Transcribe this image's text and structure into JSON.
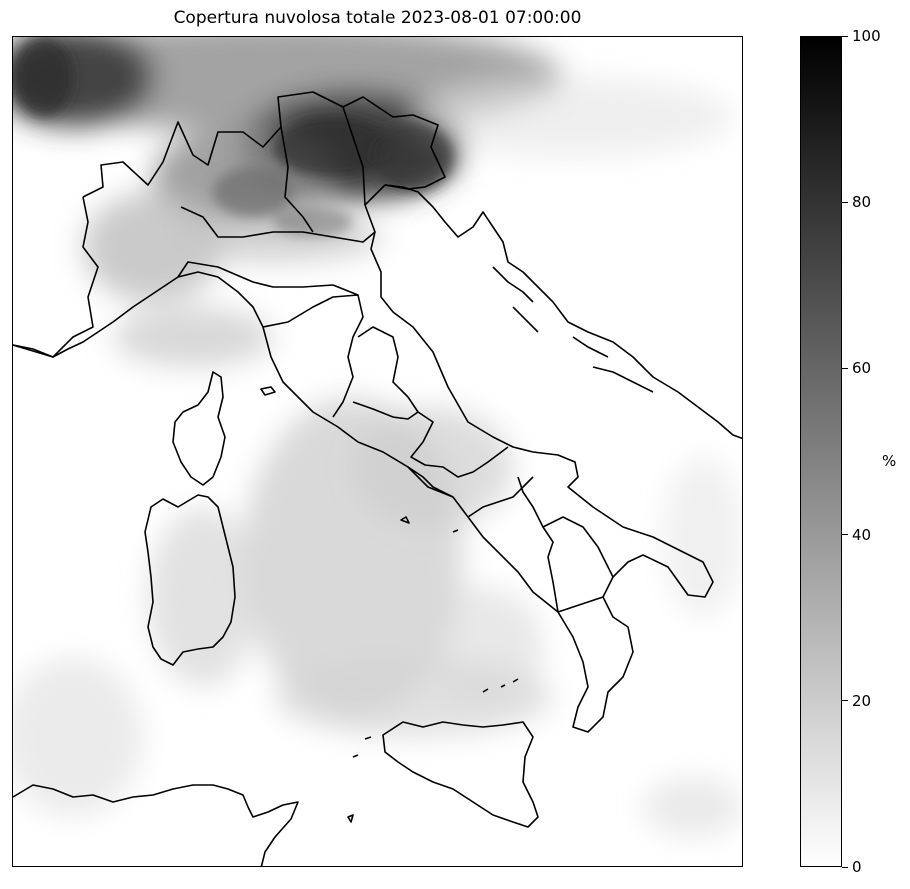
{
  "title": "Copertura nuvolosa totale 2023-08-01 07:00:00",
  "colorbar": {
    "unit": "%",
    "ticks": [
      "0",
      "20",
      "40",
      "60",
      "80",
      "100"
    ],
    "range": [
      0,
      100
    ],
    "colormap": [
      "#ffffff",
      "#000000"
    ]
  },
  "colors": {
    "outline": "#000000",
    "background": "#ffffff"
  }
}
